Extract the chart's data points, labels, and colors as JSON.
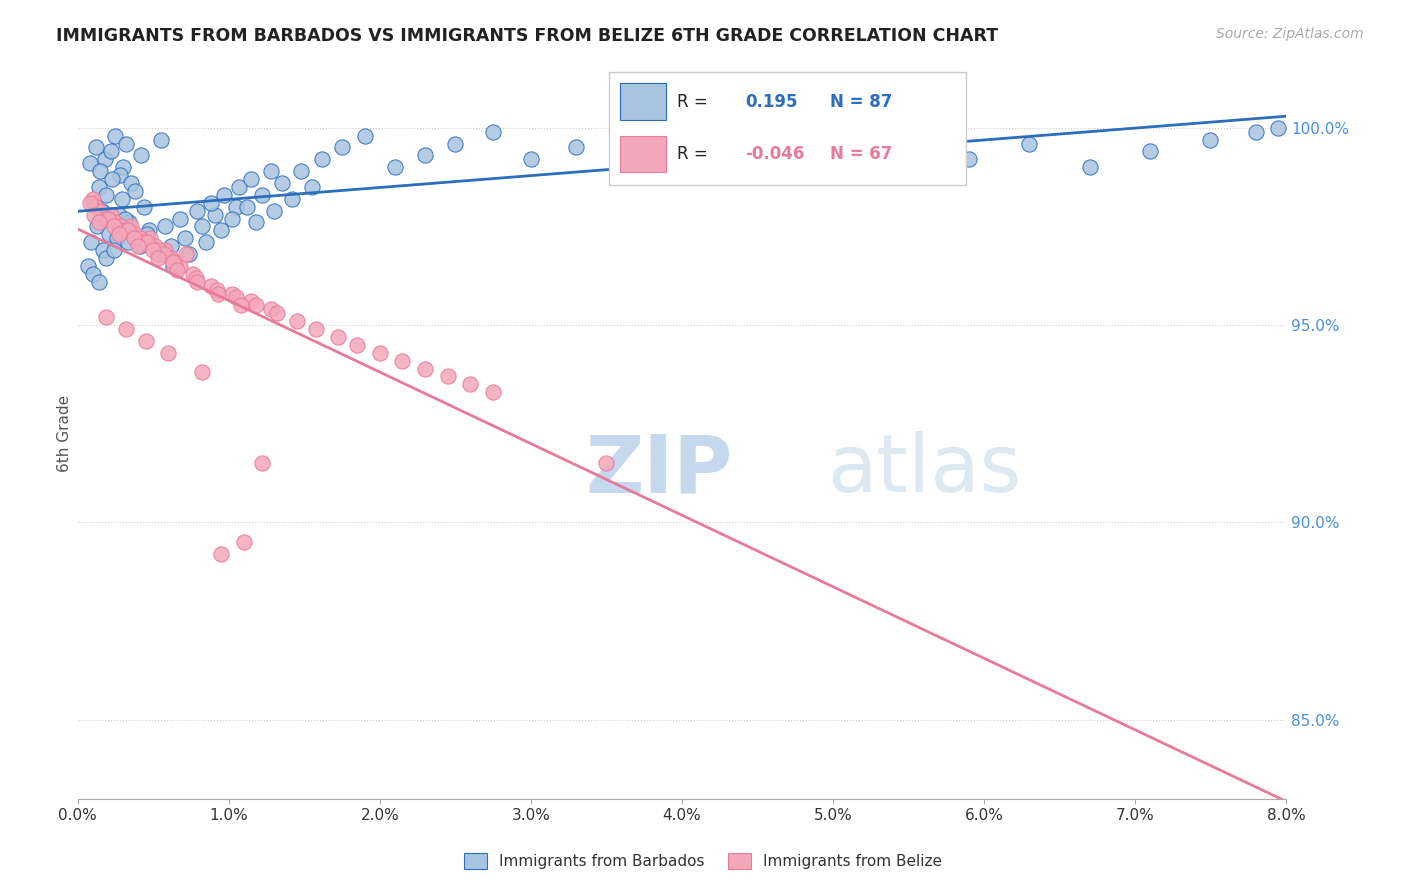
{
  "title": "IMMIGRANTS FROM BARBADOS VS IMMIGRANTS FROM BELIZE 6TH GRADE CORRELATION CHART",
  "source": "Source: ZipAtlas.com",
  "ylabel": "6th Grade",
  "x_min": 0.0,
  "x_max": 8.0,
  "y_min": 83.0,
  "y_max": 101.5,
  "barbados_R": 0.195,
  "barbados_N": 87,
  "belize_R": -0.046,
  "belize_N": 67,
  "barbados_color": "#a8c4e0",
  "belize_color": "#f4a7b9",
  "trend_barbados_color": "#2d6ebc",
  "trend_belize_color": "#e87a9a",
  "watermark_zip": "ZIP",
  "watermark_atlas": "atlas",
  "background_color": "#ffffff",
  "grid_color": "#cccccc",
  "ytick_color": "#4a90d9",
  "barbados_points_x": [
    0.12,
    0.25,
    0.18,
    0.32,
    0.08,
    0.15,
    0.22,
    0.3,
    0.42,
    0.55,
    0.14,
    0.28,
    0.35,
    0.19,
    0.11,
    0.23,
    0.38,
    0.16,
    0.29,
    0.44,
    0.13,
    0.27,
    0.34,
    0.21,
    0.09,
    0.31,
    0.47,
    0.17,
    0.26,
    0.41,
    0.53,
    0.62,
    0.71,
    0.82,
    0.91,
    1.05,
    1.18,
    1.3,
    1.42,
    1.55,
    0.07,
    0.1,
    0.14,
    0.19,
    0.24,
    0.33,
    0.46,
    0.58,
    0.68,
    0.79,
    0.88,
    0.97,
    1.07,
    1.15,
    1.28,
    0.63,
    0.74,
    0.85,
    0.95,
    1.02,
    1.12,
    1.22,
    1.35,
    1.48,
    1.62,
    1.75,
    1.9,
    2.1,
    2.3,
    2.5,
    2.75,
    3.0,
    3.3,
    3.6,
    3.9,
    4.2,
    4.5,
    4.8,
    5.1,
    5.5,
    5.9,
    6.3,
    6.7,
    7.1,
    7.5,
    7.8,
    7.95
  ],
  "barbados_points_y": [
    99.5,
    99.8,
    99.2,
    99.6,
    99.1,
    98.9,
    99.4,
    99.0,
    99.3,
    99.7,
    98.5,
    98.8,
    98.6,
    98.3,
    98.1,
    98.7,
    98.4,
    97.9,
    98.2,
    98.0,
    97.5,
    97.8,
    97.6,
    97.3,
    97.1,
    97.7,
    97.4,
    96.9,
    97.2,
    97.0,
    96.8,
    97.0,
    97.2,
    97.5,
    97.8,
    98.0,
    97.6,
    97.9,
    98.2,
    98.5,
    96.5,
    96.3,
    96.1,
    96.7,
    96.9,
    97.1,
    97.3,
    97.5,
    97.7,
    97.9,
    98.1,
    98.3,
    98.5,
    98.7,
    98.9,
    96.5,
    96.8,
    97.1,
    97.4,
    97.7,
    98.0,
    98.3,
    98.6,
    98.9,
    99.2,
    99.5,
    99.8,
    99.0,
    99.3,
    99.6,
    99.9,
    99.2,
    99.5,
    99.8,
    99.0,
    99.3,
    99.6,
    99.9,
    99.5,
    99.8,
    99.2,
    99.6,
    99.0,
    99.4,
    99.7,
    99.9,
    100.0
  ],
  "belize_points_x": [
    0.1,
    0.22,
    0.35,
    0.48,
    0.58,
    0.12,
    0.25,
    0.38,
    0.51,
    0.62,
    0.15,
    0.28,
    0.41,
    0.54,
    0.65,
    0.18,
    0.31,
    0.44,
    0.57,
    0.68,
    0.08,
    0.2,
    0.33,
    0.46,
    0.72,
    0.11,
    0.24,
    0.37,
    0.5,
    0.63,
    0.76,
    0.88,
    1.02,
    1.15,
    1.28,
    0.78,
    0.92,
    1.05,
    1.18,
    1.32,
    1.45,
    1.58,
    1.72,
    1.85,
    2.0,
    2.15,
    2.3,
    2.45,
    2.6,
    2.75,
    0.14,
    0.27,
    0.4,
    0.53,
    0.66,
    0.79,
    0.93,
    1.08,
    1.22,
    3.5,
    0.19,
    0.32,
    0.45,
    0.6,
    0.82,
    0.95,
    1.1
  ],
  "belize_points_y": [
    98.2,
    97.8,
    97.5,
    97.2,
    96.9,
    98.0,
    97.6,
    97.3,
    97.0,
    96.7,
    97.9,
    97.5,
    97.2,
    96.9,
    96.6,
    97.7,
    97.4,
    97.1,
    96.8,
    96.5,
    98.1,
    97.7,
    97.4,
    97.1,
    96.8,
    97.8,
    97.5,
    97.2,
    96.9,
    96.6,
    96.3,
    96.0,
    95.8,
    95.6,
    95.4,
    96.2,
    95.9,
    95.7,
    95.5,
    95.3,
    95.1,
    94.9,
    94.7,
    94.5,
    94.3,
    94.1,
    93.9,
    93.7,
    93.5,
    93.3,
    97.6,
    97.3,
    97.0,
    96.7,
    96.4,
    96.1,
    95.8,
    95.5,
    91.5,
    91.5,
    95.2,
    94.9,
    94.6,
    94.3,
    93.8,
    89.2,
    89.5
  ]
}
